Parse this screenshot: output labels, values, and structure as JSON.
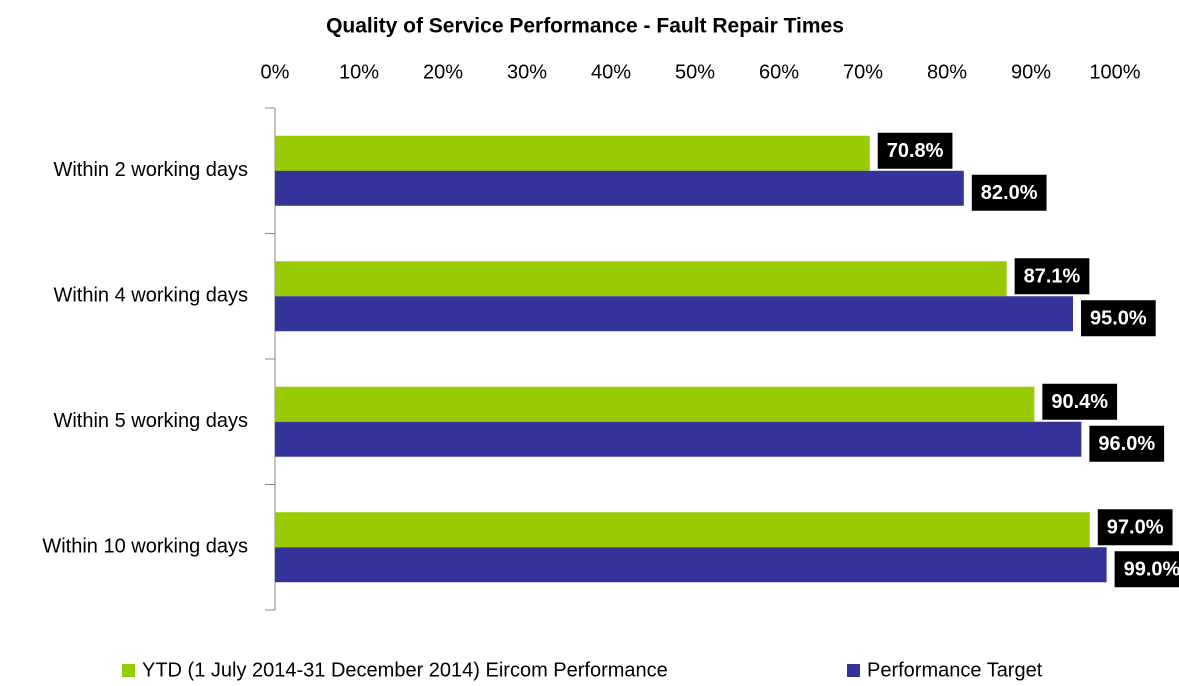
{
  "chart_data": {
    "type": "bar",
    "orientation": "horizontal",
    "title": "Quality of Service Performance  - Fault Repair Times",
    "categories": [
      "Within 2 working days",
      "Within 4 working days",
      "Within 5 working days",
      "Within 10 working days"
    ],
    "series": [
      {
        "name": "YTD (1 July 2014-31 December 2014) Eircom Performance",
        "color": "#99cc00",
        "values": [
          70.8,
          87.1,
          90.4,
          97.0
        ],
        "value_labels": [
          "70.8%",
          "87.1%",
          "90.4%",
          "97.0%"
        ]
      },
      {
        "name": "Performance Target",
        "color": "#333399",
        "values": [
          82.0,
          95.0,
          96.0,
          99.0
        ],
        "value_labels": [
          "82.0%",
          "95.0%",
          "96.0%",
          "99.0%"
        ]
      }
    ],
    "xlim": [
      0,
      100
    ],
    "xticks": [
      {
        "value": 0,
        "label": "0%"
      },
      {
        "value": 10,
        "label": "10%"
      },
      {
        "value": 20,
        "label": "20%"
      },
      {
        "value": 30,
        "label": "30%"
      },
      {
        "value": 40,
        "label": "40%"
      },
      {
        "value": 50,
        "label": "50%"
      },
      {
        "value": 60,
        "label": "60%"
      },
      {
        "value": 70,
        "label": "70%"
      },
      {
        "value": 80,
        "label": "80%"
      },
      {
        "value": 90,
        "label": "90%"
      },
      {
        "value": 100,
        "label": "100%"
      }
    ],
    "legend": "bottom"
  }
}
